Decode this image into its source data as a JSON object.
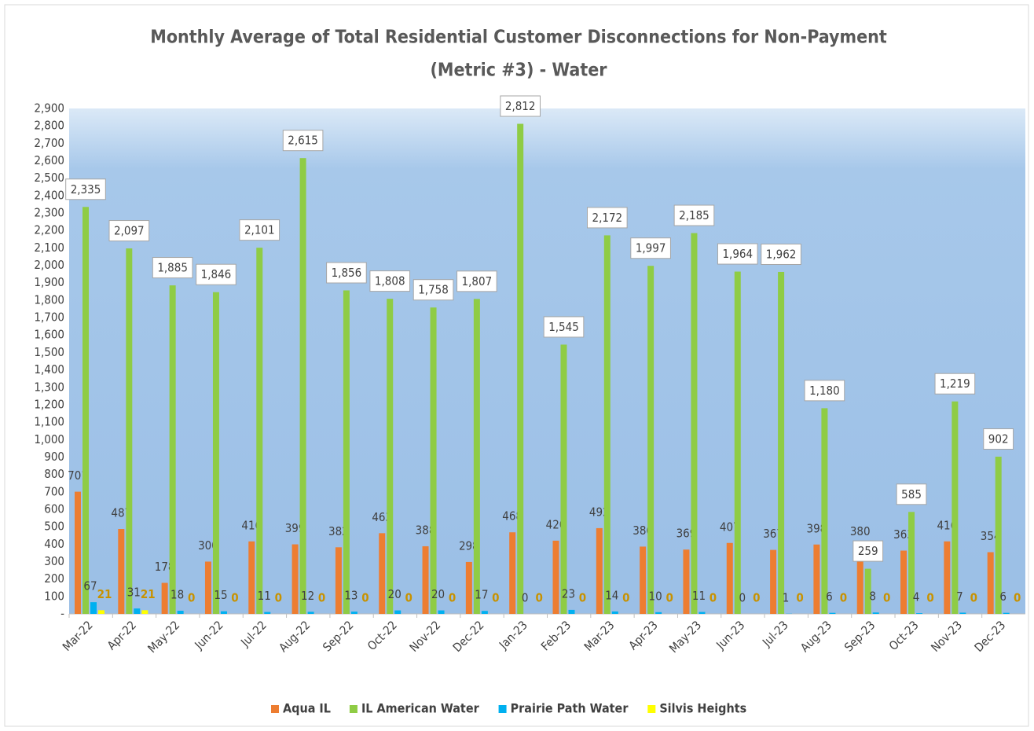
{
  "chart_data": {
    "type": "bar",
    "title": [
      "Monthly Average of Total Residential Customer Disconnections for Non-Payment",
      "(Metric #3) - Water"
    ],
    "categories": [
      "Mar-22",
      "Apr-22",
      "May-22",
      "Jun-22",
      "Jul-22",
      "Aug-22",
      "Sep-22",
      "Oct-22",
      "Nov-22",
      "Dec-22",
      "Jan-23",
      "Feb-23",
      "Mar-23",
      "Apr-23",
      "May-23",
      "Jun-23",
      "Jul-23",
      "Aug-23",
      "Sep-23",
      "Oct-23",
      "Nov-23",
      "Dec-23"
    ],
    "series": [
      {
        "name": "Aqua IL",
        "color": "#ed7d31",
        "values": [
          701,
          487,
          178,
          300,
          416,
          399,
          382,
          463,
          388,
          298,
          468,
          420,
          492,
          386,
          369,
          407,
          367,
          398,
          380,
          363,
          416,
          354
        ]
      },
      {
        "name": "IL American Water",
        "color": "#8fcc45",
        "values": [
          2335,
          2097,
          1885,
          1846,
          2101,
          2615,
          1856,
          1808,
          1758,
          1807,
          2812,
          1545,
          2172,
          1997,
          2185,
          1964,
          1962,
          1180,
          259,
          585,
          1219,
          902
        ],
        "value_labels": [
          "2,335",
          "2,097",
          "1,885",
          "1,846",
          "2,101",
          "2,615",
          "1,856",
          "1,808",
          "1,758",
          "1,807",
          "2,812",
          "1,545",
          "2,172",
          "1,997",
          "2,185",
          "1,964",
          "1,962",
          "1,180",
          "259",
          "585",
          "1,219",
          "902"
        ]
      },
      {
        "name": "Prairie Path Water",
        "color": "#00b0f0",
        "values": [
          67,
          31,
          18,
          15,
          11,
          12,
          13,
          20,
          20,
          17,
          0,
          23,
          14,
          10,
          11,
          0,
          1,
          6,
          8,
          4,
          7,
          6
        ]
      },
      {
        "name": "Silvis Heights",
        "color": "#ffff00",
        "values": [
          21,
          21,
          0,
          0,
          0,
          0,
          0,
          0,
          0,
          0,
          0,
          0,
          0,
          0,
          0,
          0,
          0,
          0,
          0,
          0,
          0,
          0
        ]
      }
    ],
    "ylim": [
      0,
      2900
    ],
    "yticks": [
      {
        "value": 0,
        "label": "-"
      },
      100,
      200,
      300,
      400,
      500,
      600,
      700,
      800,
      900,
      {
        "value": 1000,
        "label": "1,000"
      },
      {
        "value": 1100,
        "label": "1,100"
      },
      {
        "value": 1200,
        "label": "1,200"
      },
      {
        "value": 1300,
        "label": "1,300"
      },
      {
        "value": 1400,
        "label": "1,400"
      },
      {
        "value": 1500,
        "label": "1,500"
      },
      {
        "value": 1600,
        "label": "1,600"
      },
      {
        "value": 1700,
        "label": "1,700"
      },
      {
        "value": 1800,
        "label": "1,800"
      },
      {
        "value": 1900,
        "label": "1,900"
      },
      {
        "value": 2000,
        "label": "2,000"
      },
      {
        "value": 2100,
        "label": "2,100"
      },
      {
        "value": 2200,
        "label": "2,200"
      },
      {
        "value": 2300,
        "label": "2,300"
      },
      {
        "value": 2400,
        "label": "2,400"
      },
      {
        "value": 2500,
        "label": "2,500"
      },
      {
        "value": 2600,
        "label": "2,600"
      },
      {
        "value": 2700,
        "label": "2,700"
      },
      {
        "value": 2800,
        "label": "2,800"
      },
      {
        "value": 2900,
        "label": "2,900"
      }
    ],
    "grid": false,
    "legend": "bottom"
  }
}
